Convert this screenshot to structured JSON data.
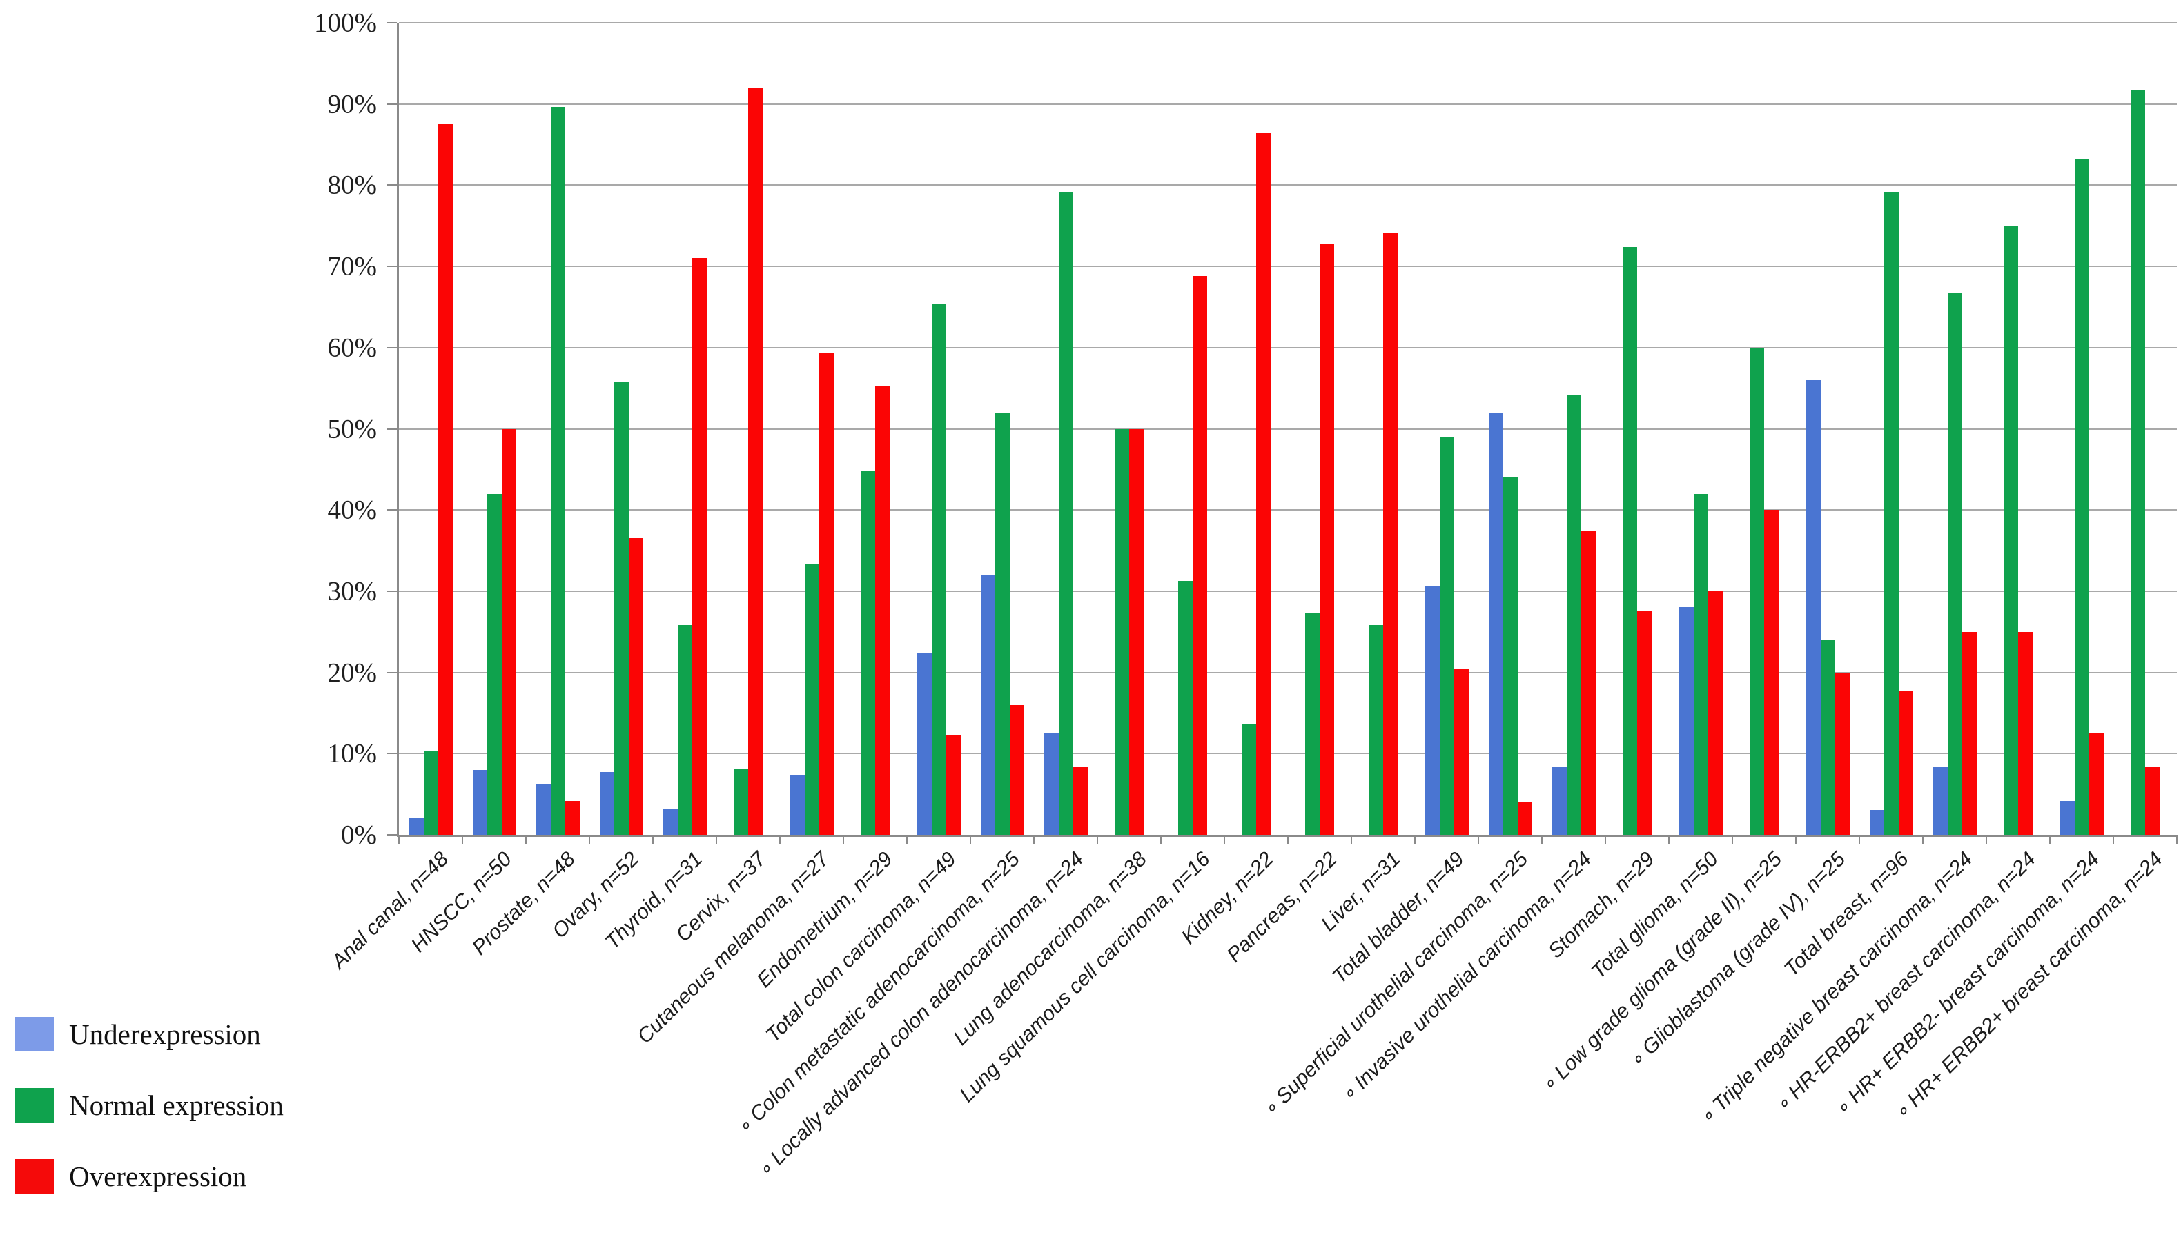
{
  "chart_data": {
    "type": "bar",
    "title": "",
    "xlabel": "",
    "ylabel": "",
    "ylim": [
      0,
      100
    ],
    "grid": true,
    "legend_position": "bottom-left",
    "y_tick_labels": [
      "0%",
      "10%",
      "20%",
      "30%",
      "40%",
      "50%",
      "60%",
      "70%",
      "80%",
      "90%",
      "100%"
    ],
    "categories": [
      "Anal canal, n=48",
      "HNSCC, n=50",
      "Prostate, n=48",
      "Ovary, n=52",
      "Thyroid, n=31",
      "Cervix, n=37",
      "Cutaneous melanoma, n=27",
      "Endometrium, n=29",
      "Total colon carcinoma, n=49",
      "∘ Colon metastatic adenocarcinoma, n=25",
      "∘ Locally advanced colon adenocarcinoma, n=24",
      "Lung adenocarcinoma, n=38",
      "Lung squamous cell carcinoma, n=16",
      "Kidney, n=22",
      "Pancreas, n=22",
      "Liver, n=31",
      "Total bladder, n=49",
      "∘ Superficial urothelial carcinoma, n=25",
      "∘ Invasive urothelial carcinoma, n=24",
      "Stomach, n=29",
      "Total glioma, n=50",
      "∘ Low grade glioma (grade II), n=25",
      "∘ Glioblastoma (grade IV), n=25",
      "Total breast, n=96",
      "∘ Triple negative breast carcinoma, n=24",
      "∘ HR-ERBB2+ breast carcinoma, n=24",
      "∘ HR+ ERBB2- breast carcinoma, n=24",
      "∘ HR+ ERBB2+ breast carcinoma, n=24"
    ],
    "series": [
      {
        "name": "Underexpression",
        "color": "#4a75d2",
        "legend_color": "#7d9be8",
        "values": [
          2.1,
          8,
          6.3,
          7.7,
          3.2,
          0,
          7.4,
          0,
          22.4,
          32,
          12.5,
          0,
          0,
          0,
          0,
          0,
          30.6,
          52,
          8.3,
          0,
          28,
          0,
          56,
          3.1,
          8.3,
          0,
          4.2,
          0
        ]
      },
      {
        "name": "Normal expression",
        "color": "#0fa24d",
        "legend_color": "#0fa24d",
        "values": [
          10.4,
          42,
          89.6,
          55.8,
          25.8,
          8.1,
          33.3,
          44.8,
          65.3,
          52,
          79.2,
          50,
          31.3,
          13.6,
          27.3,
          25.8,
          49,
          44,
          54.2,
          72.4,
          42,
          60,
          24,
          79.2,
          66.7,
          75,
          83.3,
          91.7
        ]
      },
      {
        "name": "Overexpression",
        "color": "#fb0505",
        "legend_color": "#f50a0a",
        "values": [
          87.5,
          50,
          4.2,
          36.5,
          71,
          91.9,
          59.3,
          55.2,
          12.2,
          16,
          8.3,
          50,
          68.8,
          86.4,
          72.7,
          74.2,
          20.4,
          4,
          37.5,
          27.6,
          30,
          40,
          20,
          17.7,
          25,
          25,
          12.5,
          8.3
        ]
      }
    ],
    "colors": {
      "gridline": "#a9a9a9",
      "axis": "#8a8a8a",
      "background": "#ffffff"
    }
  }
}
